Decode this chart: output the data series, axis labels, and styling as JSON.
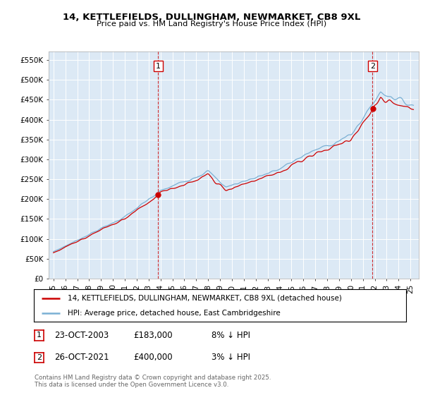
{
  "title": "14, KETTLEFIELDS, DULLINGHAM, NEWMARKET, CB8 9XL",
  "subtitle": "Price paid vs. HM Land Registry's House Price Index (HPI)",
  "ylim": [
    0,
    570000
  ],
  "xlim_start": 1994.6,
  "xlim_end": 2025.7,
  "sale1_x": 2003.81,
  "sale1_y": 183000,
  "sale2_x": 2021.81,
  "sale2_y": 400000,
  "legend_line1": "14, KETTLEFIELDS, DULLINGHAM, NEWMARKET, CB8 9XL (detached house)",
  "legend_line2": "HPI: Average price, detached house, East Cambridgeshire",
  "annotation1_date": "23-OCT-2003",
  "annotation1_price": "£183,000",
  "annotation1_hpi": "8% ↓ HPI",
  "annotation2_date": "26-OCT-2021",
  "annotation2_price": "£400,000",
  "annotation2_hpi": "3% ↓ HPI",
  "footer": "Contains HM Land Registry data © Crown copyright and database right 2025.\nThis data is licensed under the Open Government Licence v3.0.",
  "plot_bg": "#dce9f5",
  "fig_bg": "#ffffff",
  "red_color": "#cc0000",
  "blue_color": "#7ab0d4",
  "grid_color": "#ffffff",
  "vline_color": "#cc0000",
  "marker_color": "#cc0000"
}
